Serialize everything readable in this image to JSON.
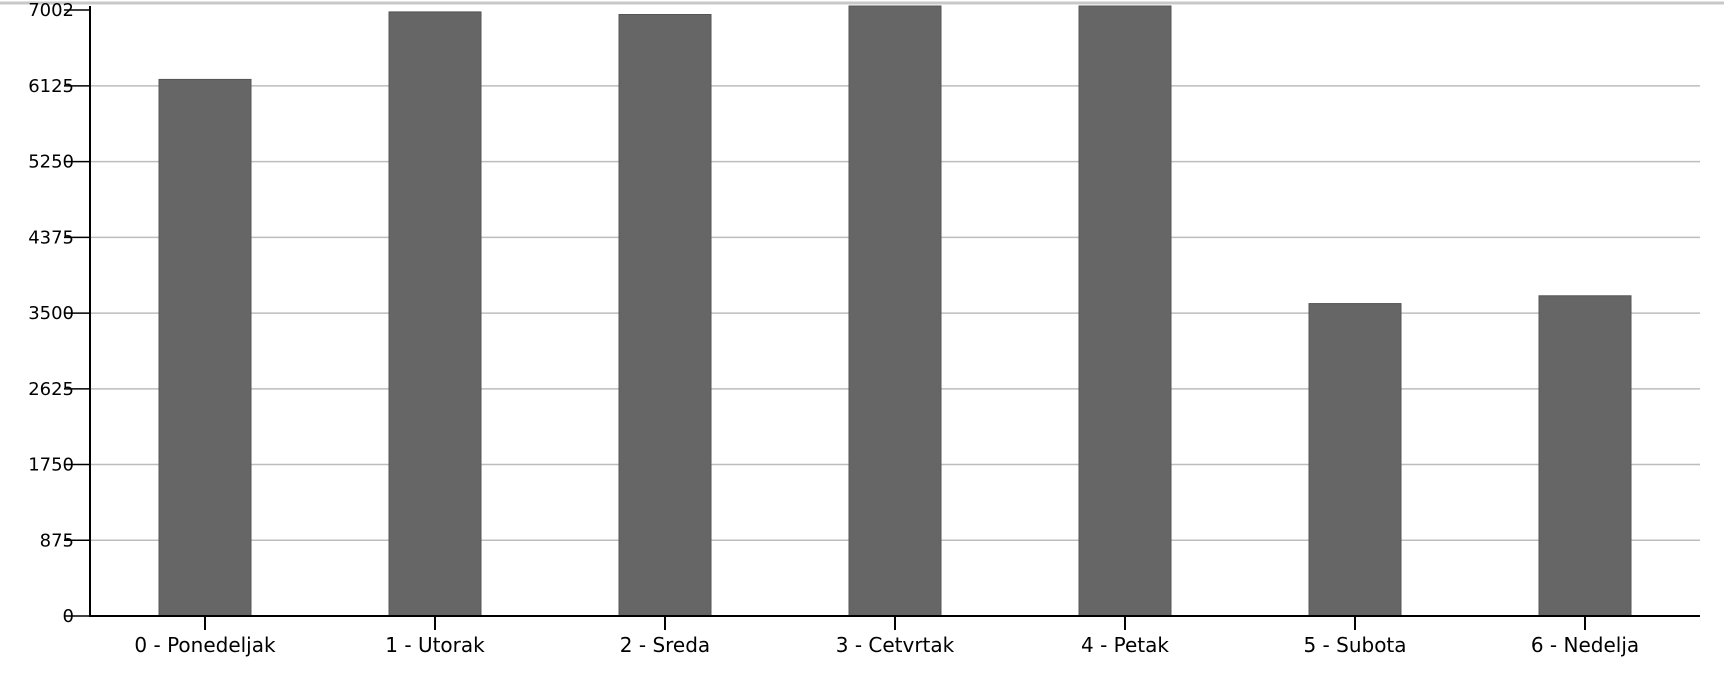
{
  "chart_data": {
    "type": "bar",
    "title": "",
    "xlabel": "",
    "ylabel": "",
    "categories": [
      "0 - Ponedeljak",
      "1 - Utorak",
      "2 - Sreda",
      "3 - Cetvrtak",
      "4 - Petak",
      "5 - Subota",
      "6 - Nedelja"
    ],
    "values": [
      6200,
      6980,
      6950,
      7150,
      7200,
      3610,
      3700
    ],
    "ylim": [
      0,
      7002
    ],
    "yticks": [
      0,
      875,
      1750,
      2625,
      3500,
      4375,
      5250,
      6125,
      7002
    ],
    "grid": true,
    "legend": "none",
    "colors": {
      "bar": "#666666",
      "grid": "#bdbdbd",
      "axis": "#000000"
    }
  }
}
